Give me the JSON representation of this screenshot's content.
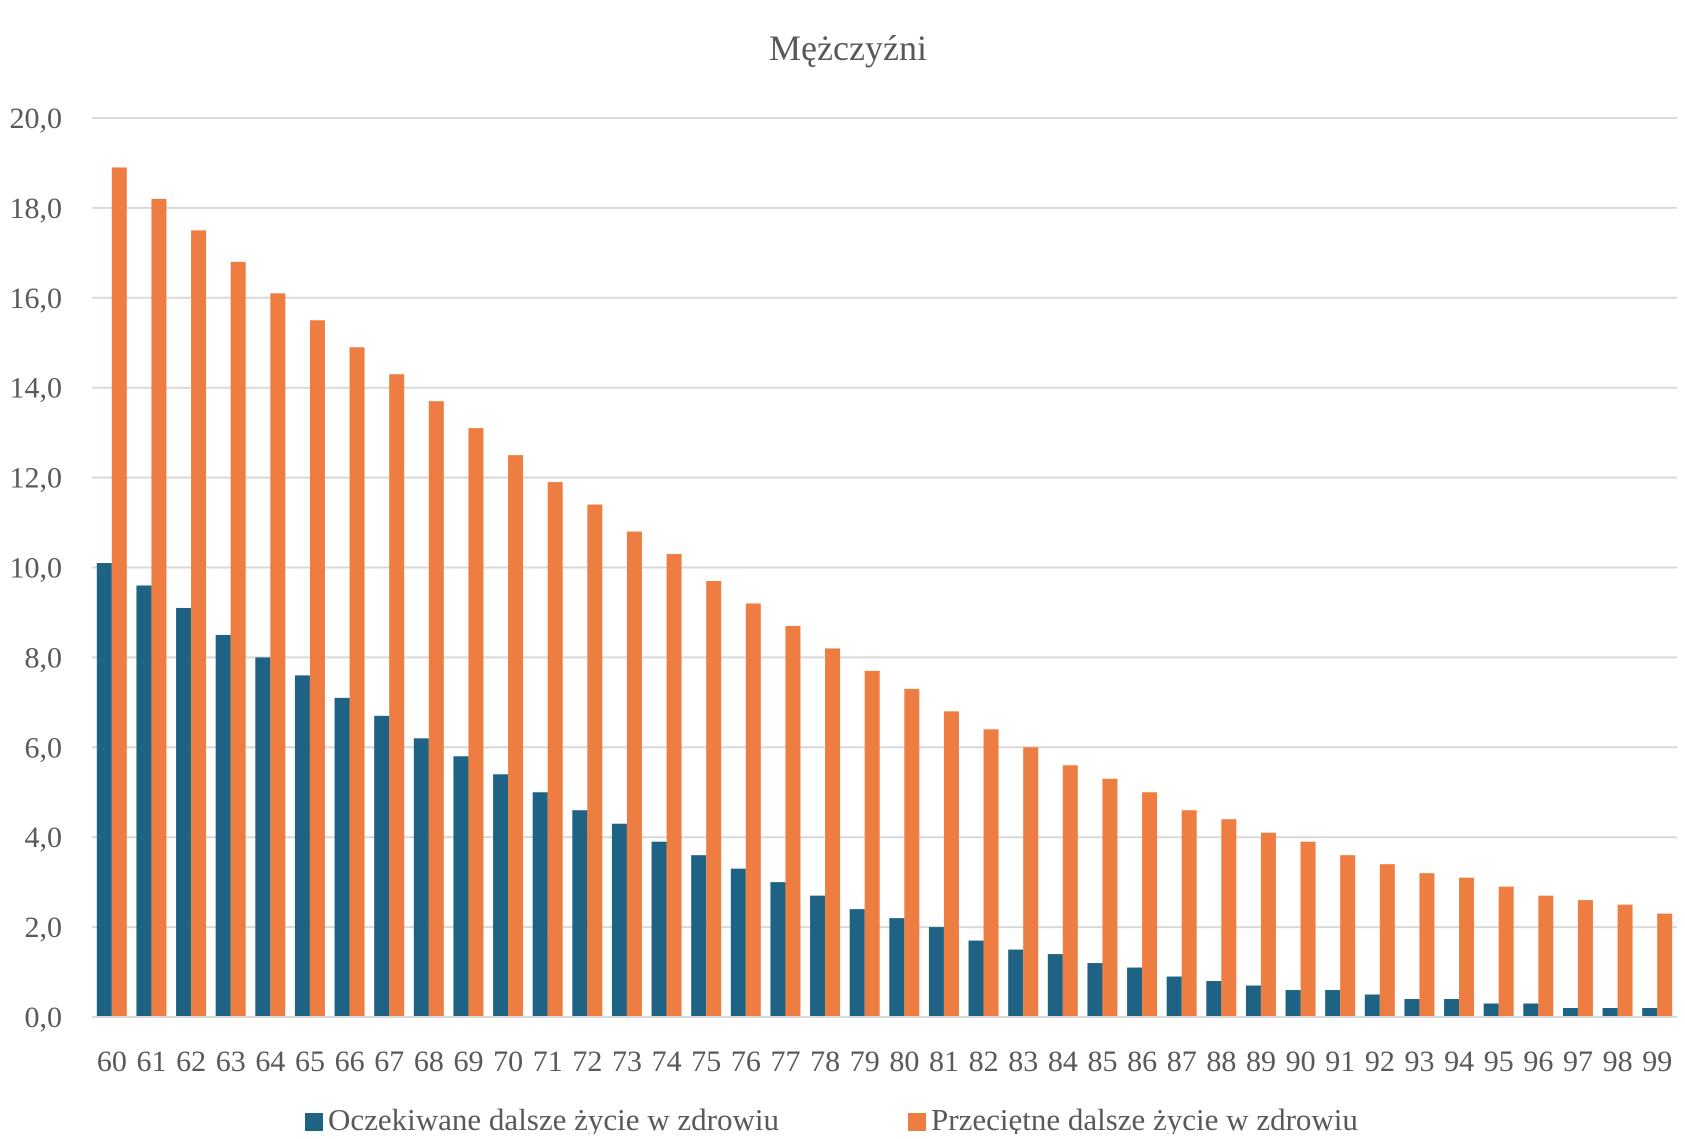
{
  "header_fragment": "",
  "colors": {
    "series_1": "#1f6384",
    "series_2": "#ee7d41",
    "grid": "#d9d9d9",
    "text": "#595959"
  },
  "chart_data": {
    "type": "bar",
    "title": "Mężczyźni",
    "xlabel": "",
    "ylabel": "",
    "ylim": [
      0,
      20
    ],
    "y_ticks": [
      "0,0",
      "2,0",
      "4,0",
      "6,0",
      "8,0",
      "10,0",
      "12,0",
      "14,0",
      "16,0",
      "18,0",
      "20,0"
    ],
    "grid": true,
    "legend_position": "bottom",
    "categories": [
      "60",
      "61",
      "62",
      "63",
      "64",
      "65",
      "66",
      "67",
      "68",
      "69",
      "70",
      "71",
      "72",
      "73",
      "74",
      "75",
      "76",
      "77",
      "78",
      "79",
      "80",
      "81",
      "82",
      "83",
      "84",
      "85",
      "86",
      "87",
      "88",
      "89",
      "90",
      "91",
      "92",
      "93",
      "94",
      "95",
      "96",
      "97",
      "98",
      "99"
    ],
    "series": [
      {
        "name": "Oczekiwane dalsze życie w zdrowiu",
        "color": "#1f6384",
        "values": [
          10.1,
          9.6,
          9.1,
          8.5,
          8.0,
          7.6,
          7.1,
          6.7,
          6.2,
          5.8,
          5.4,
          5.0,
          4.6,
          4.3,
          3.9,
          3.6,
          3.3,
          3.0,
          2.7,
          2.4,
          2.2,
          2.0,
          1.7,
          1.5,
          1.4,
          1.2,
          1.1,
          0.9,
          0.8,
          0.7,
          0.6,
          0.6,
          0.5,
          0.4,
          0.4,
          0.3,
          0.3,
          0.2,
          0.2,
          0.2
        ]
      },
      {
        "name": "Przeciętne dalsze życie w zdrowiu",
        "color": "#ee7d41",
        "values": [
          18.9,
          18.2,
          17.5,
          16.8,
          16.1,
          15.5,
          14.9,
          14.3,
          13.7,
          13.1,
          12.5,
          11.9,
          11.4,
          10.8,
          10.3,
          9.7,
          9.2,
          8.7,
          8.2,
          7.7,
          7.3,
          6.8,
          6.4,
          6.0,
          5.6,
          5.3,
          5.0,
          4.6,
          4.4,
          4.1,
          3.9,
          3.6,
          3.4,
          3.2,
          3.1,
          2.9,
          2.7,
          2.6,
          2.5,
          2.3
        ]
      }
    ]
  }
}
